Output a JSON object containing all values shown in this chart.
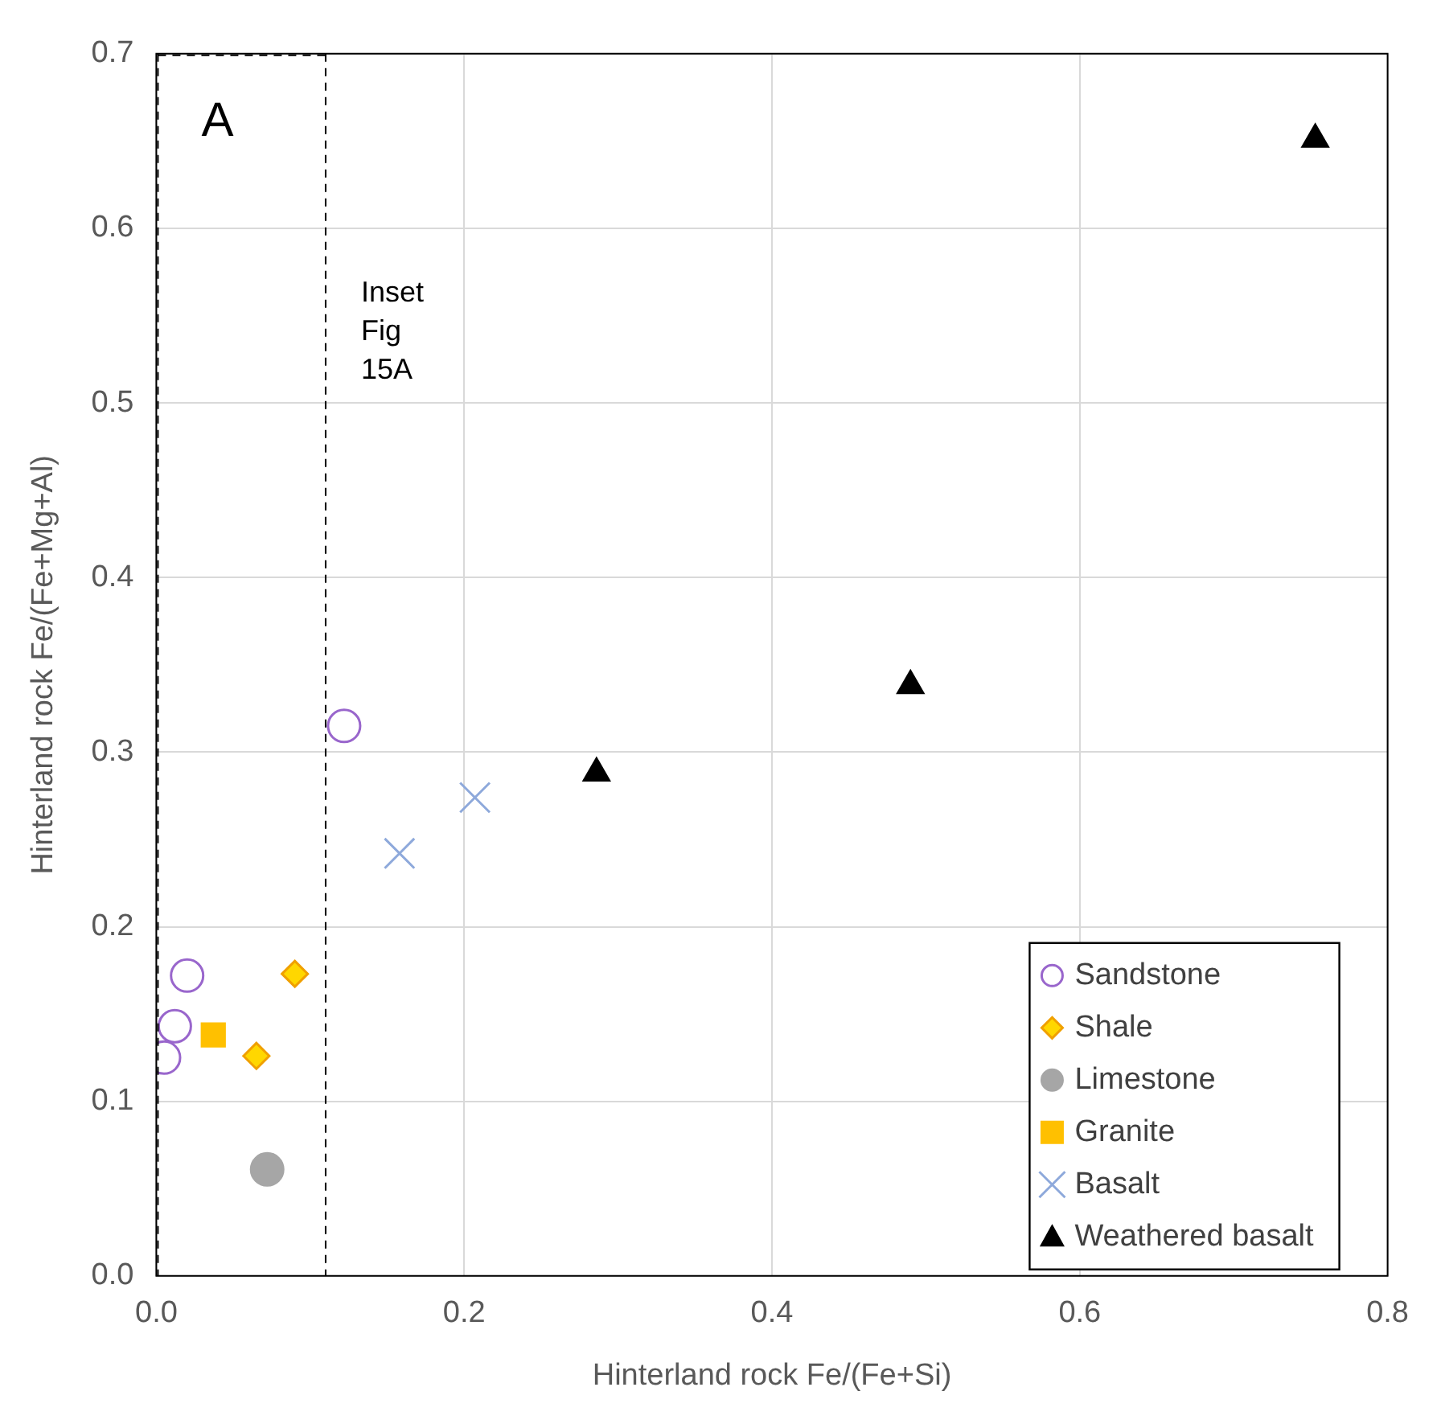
{
  "chart_data": {
    "type": "scatter",
    "xlabel": "Hinterland rock Fe/(Fe+Si)",
    "ylabel": "Hinterland rock Fe/(Fe+Mg+Al)",
    "xlim": [
      0,
      0.8
    ],
    "xticks": [
      {
        "value": 0,
        "label": "0.0"
      },
      {
        "value": 0.2,
        "label": "0.2"
      },
      {
        "value": 0.4,
        "label": "0.4"
      },
      {
        "value": 0.6,
        "label": "0.6"
      },
      {
        "value": 0.8,
        "label": "0.8"
      }
    ],
    "ylim": [
      0,
      0.7
    ],
    "yticks": [
      {
        "value": 0,
        "label": "0.0"
      },
      {
        "value": 0.1,
        "label": "0.1"
      },
      {
        "value": 0.2,
        "label": "0.2"
      },
      {
        "value": 0.3,
        "label": "0.3"
      },
      {
        "value": 0.4,
        "label": "0.4"
      },
      {
        "value": 0.5,
        "label": "0.5"
      },
      {
        "value": 0.6,
        "label": "0.6"
      },
      {
        "value": 0.7,
        "label": "0.7"
      }
    ],
    "grid": true,
    "legend": "bottom right",
    "annotations": [
      "A"
    ],
    "ref_lines": [
      {
        "axis": "x",
        "value": 0.11,
        "label": "Inset Fig 15A",
        "color": "#000000",
        "line_style": "dashed"
      }
    ],
    "series": [
      {
        "name": "Sandstone",
        "color": "#9966cc",
        "marker": "circle",
        "x": [
          0.005,
          0.012,
          0.02,
          0.122
        ],
        "values": [
          0.125,
          0.143,
          0.172,
          0.315
        ]
      },
      {
        "name": "Shale",
        "color": "#ffd700",
        "marker": "diamond",
        "x": [
          0.065,
          0.09
        ],
        "values": [
          0.126,
          0.173
        ]
      },
      {
        "name": "Limestone",
        "color": "#a6a6a6",
        "marker": "circle",
        "x": [
          0.072
        ],
        "values": [
          0.061
        ]
      },
      {
        "name": "Granite",
        "color": "#ffc000",
        "marker": "square",
        "x": [
          0.037
        ],
        "values": [
          0.138
        ]
      },
      {
        "name": "Basalt",
        "color": "#8ea9db",
        "marker": "cross",
        "x": [
          0.158,
          0.207
        ],
        "values": [
          0.242,
          0.274
        ]
      },
      {
        "name": "Weathered basalt",
        "color": "#000000",
        "marker": "triangle",
        "x": [
          0.286,
          0.49,
          0.753
        ],
        "values": [
          0.288,
          0.338,
          0.651
        ]
      }
    ]
  }
}
